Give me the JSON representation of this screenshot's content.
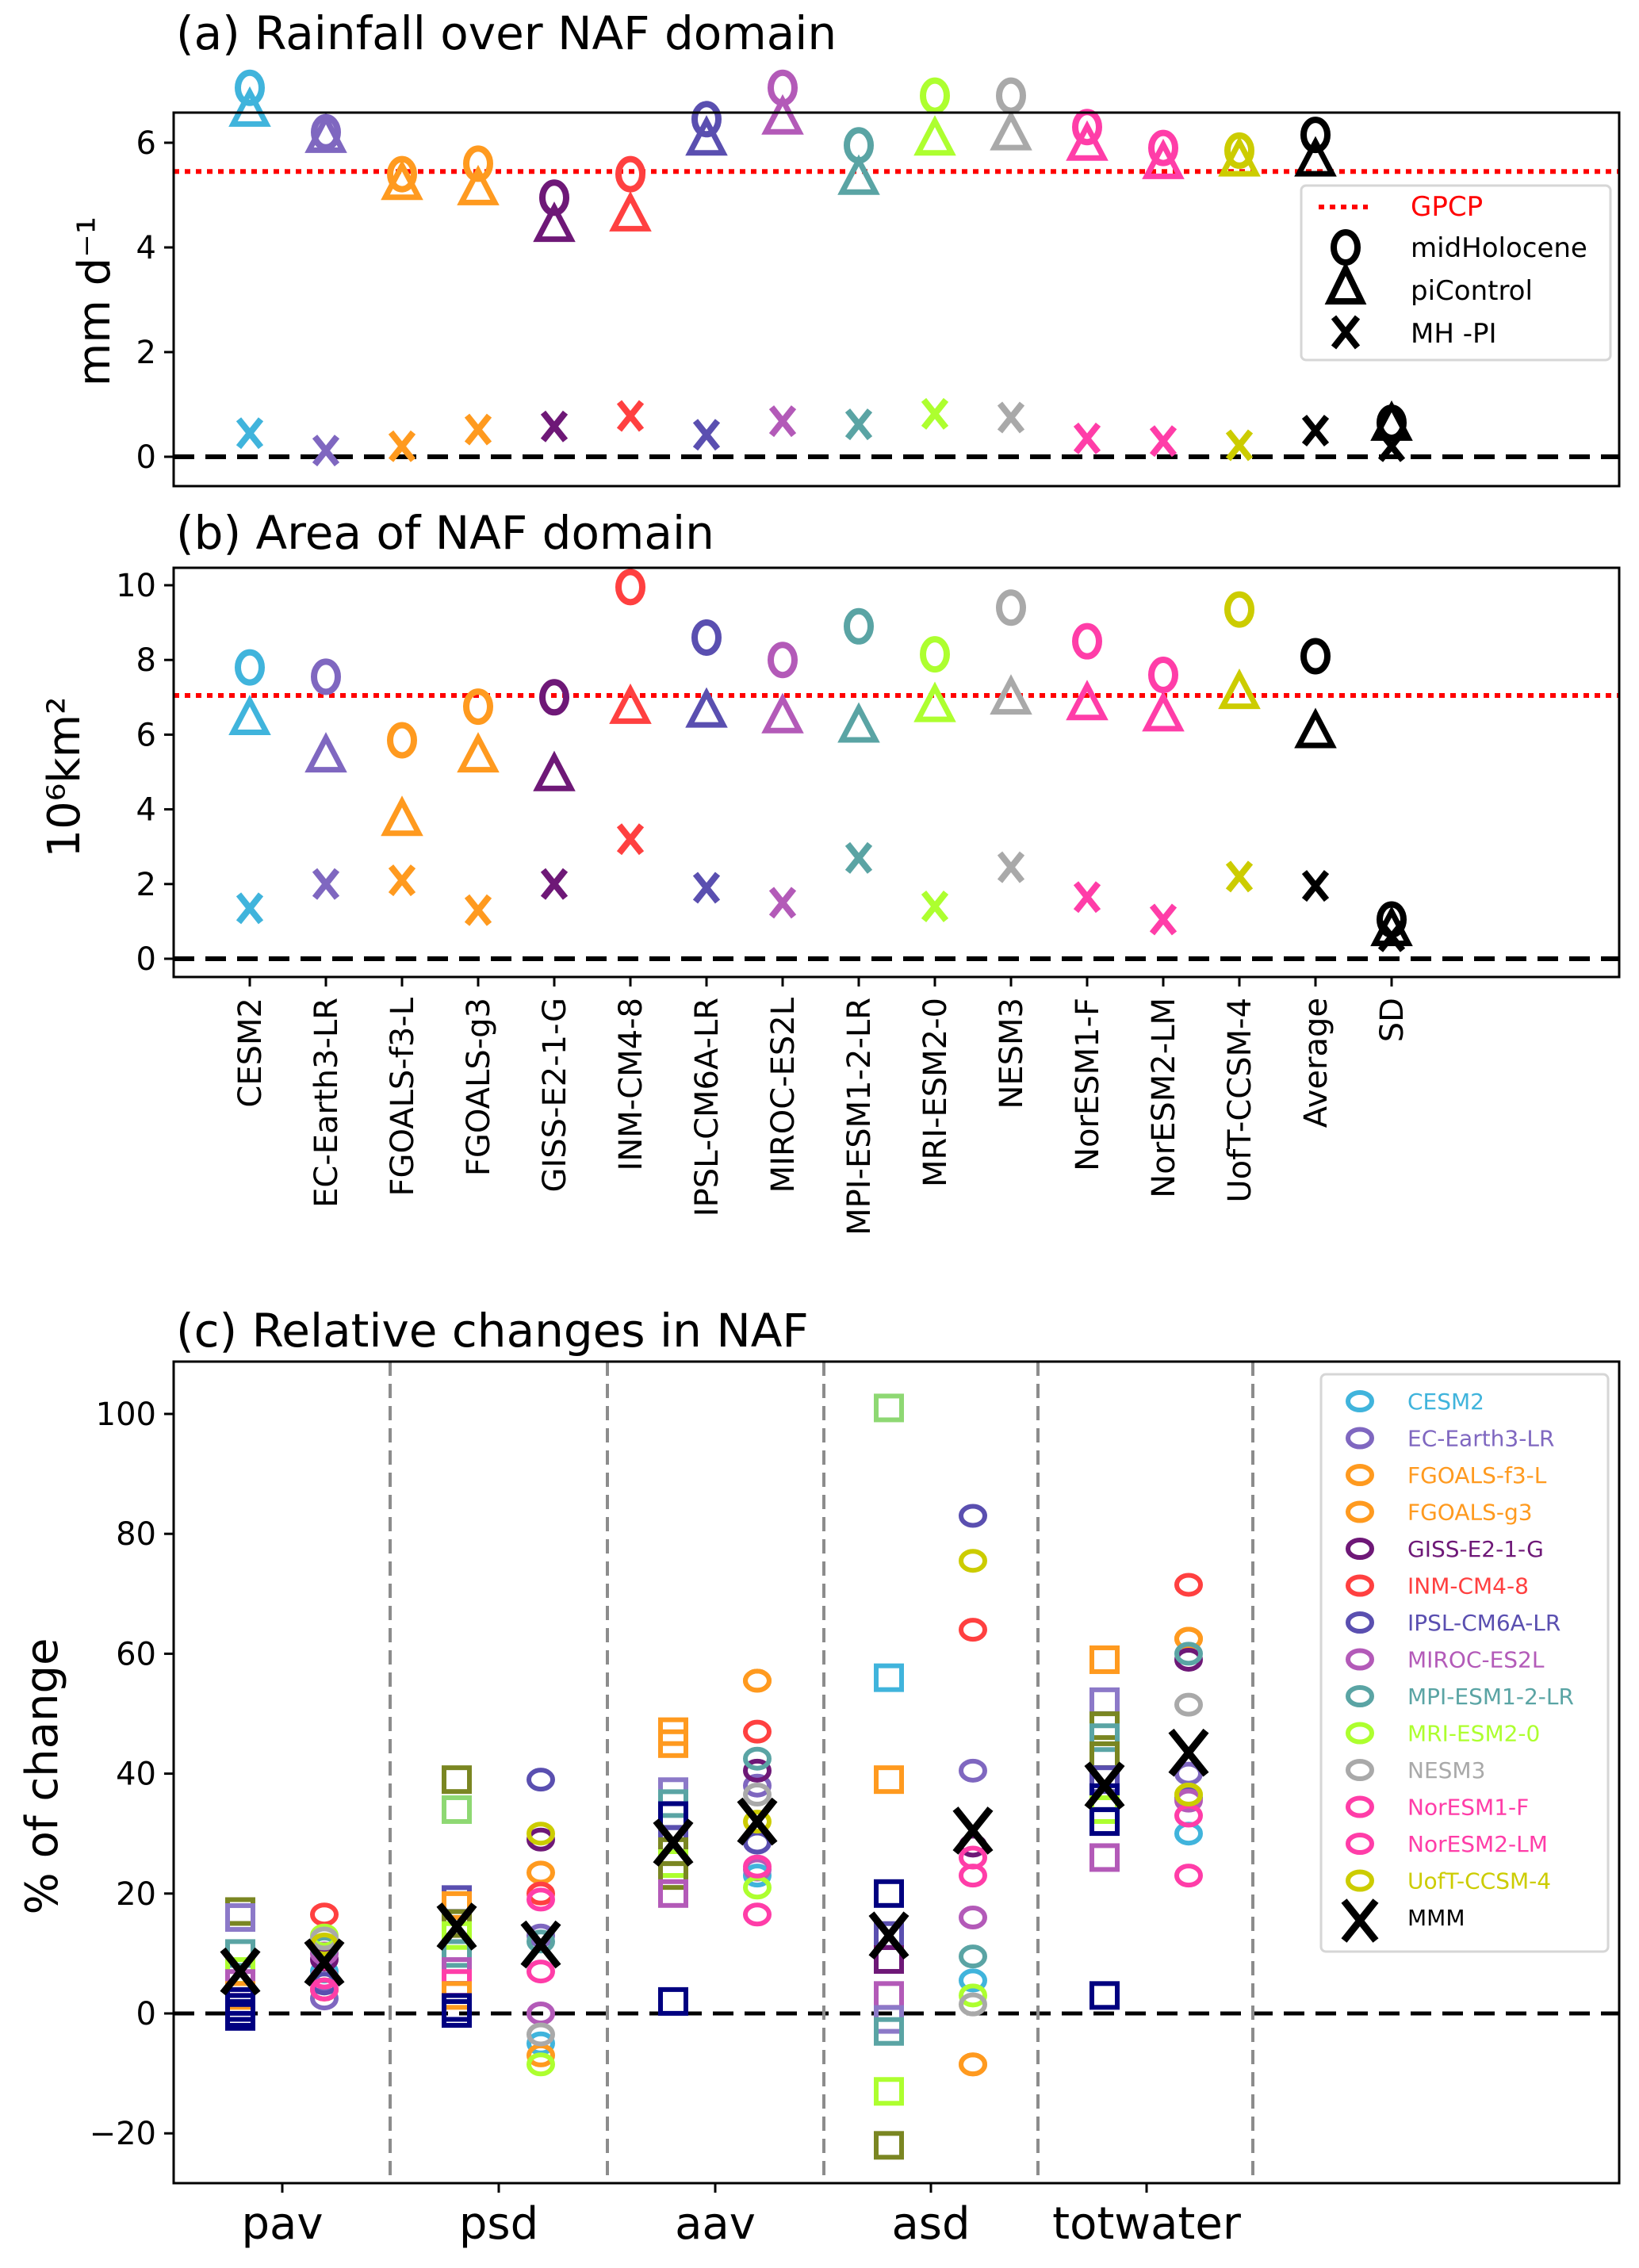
{
  "chart_data": [
    {
      "id": "a",
      "type": "scatter",
      "title": "(a) Rainfall over NAF domain",
      "ylabel": "mm d⁻¹",
      "ylim": [
        -0.3,
        7.5
      ],
      "yticks": [
        0,
        2,
        4,
        6
      ],
      "reference_line": {
        "name": "GPCP",
        "value": 5.45,
        "color": "#ff0000",
        "style": "dotted"
      },
      "zero_line": {
        "value": 0,
        "color": "#000000",
        "style": "dashed"
      },
      "categories": [
        "CESM2",
        "EC-Earth3-LR",
        "FGOALS-f3-L",
        "FGOALS-g3",
        "GISS-E2-1-G",
        "INM-CM4-8",
        "IPSL-CM6A-LR",
        "MIROC-ES2L",
        "MPI-ESM1-2-LR",
        "MRI-ESM2-0",
        "NESM3",
        "NorESM1-F",
        "NorESM2-LM",
        "UofT-CCSM-4",
        "Average",
        "SD"
      ],
      "series": [
        {
          "name": "midHolocene",
          "marker": "circle",
          "values": [
            7.05,
            6.2,
            5.4,
            5.6,
            4.95,
            5.4,
            6.45,
            7.05,
            5.95,
            6.9,
            6.9,
            6.3,
            5.9,
            5.85,
            6.15,
            0.65
          ]
        },
        {
          "name": "piControl",
          "marker": "triangle",
          "values": [
            6.6,
            6.1,
            5.2,
            5.1,
            4.4,
            4.6,
            6.05,
            6.45,
            5.3,
            6.05,
            6.15,
            5.95,
            5.6,
            5.65,
            5.65,
            0.6
          ]
        },
        {
          "name": "MH -PI",
          "marker": "x",
          "values": [
            0.45,
            0.12,
            0.2,
            0.52,
            0.58,
            0.78,
            0.42,
            0.68,
            0.62,
            0.82,
            0.75,
            0.35,
            0.3,
            0.22,
            0.5,
            0.2
          ]
        }
      ],
      "legend": {
        "position": "right",
        "entries": [
          "GPCP",
          "midHolocene",
          "piControl",
          "MH -PI"
        ]
      }
    },
    {
      "id": "b",
      "type": "scatter",
      "title": "(b) Area of NAF domain",
      "ylabel": "10⁶km²",
      "ylim": [
        -0.5,
        10.4
      ],
      "yticks": [
        0,
        2,
        4,
        6,
        8,
        10
      ],
      "reference_line": {
        "name": "GPCP",
        "value": 7.05,
        "color": "#ff0000",
        "style": "dotted"
      },
      "zero_line": {
        "value": 0,
        "color": "#000000",
        "style": "dashed"
      },
      "categories": [
        "CESM2",
        "EC-Earth3-LR",
        "FGOALS-f3-L",
        "FGOALS-g3",
        "GISS-E2-1-G",
        "INM-CM4-8",
        "IPSL-CM6A-LR",
        "MIROC-ES2L",
        "MPI-ESM1-2-LR",
        "MRI-ESM2-0",
        "NESM3",
        "NorESM1-F",
        "NorESM2-LM",
        "UofT-CCSM-4",
        "Average",
        "SD"
      ],
      "series": [
        {
          "name": "midHolocene",
          "marker": "circle",
          "values": [
            7.8,
            7.55,
            5.85,
            6.75,
            7.0,
            9.95,
            8.6,
            8.0,
            8.9,
            8.15,
            9.4,
            8.5,
            7.6,
            9.35,
            8.1,
            1.05
          ]
        },
        {
          "name": "piControl",
          "marker": "triangle",
          "values": [
            6.4,
            5.4,
            3.7,
            5.4,
            4.9,
            6.7,
            6.6,
            6.45,
            6.2,
            6.75,
            6.95,
            6.8,
            6.5,
            7.1,
            6.05,
            0.75
          ]
        },
        {
          "name": "MH -PI",
          "marker": "x",
          "values": [
            1.35,
            2.0,
            2.1,
            1.3,
            2.0,
            3.2,
            1.9,
            1.5,
            2.7,
            1.4,
            2.45,
            1.65,
            1.05,
            2.2,
            1.95,
            0.6
          ]
        }
      ]
    },
    {
      "id": "c",
      "type": "scatter",
      "title": "(c) Relative changes in NAF",
      "ylabel": "% of change",
      "ylim": [
        -28,
        108
      ],
      "yticks": [
        -20,
        0,
        20,
        40,
        60,
        80,
        100
      ],
      "ytick_labels": [
        "−20",
        "0",
        "20",
        "40",
        "60",
        "80",
        "100"
      ],
      "categories": [
        "pav",
        "psd",
        "aav",
        "asd",
        "totwater"
      ],
      "zero_line": {
        "value": 0,
        "color": "#000000",
        "style": "dashed"
      },
      "separators": "grey dashed vertical lines between categories",
      "square_points": [
        [
          17,
          16,
          10,
          7,
          5,
          3,
          2,
          1,
          0,
          -0.5
        ],
        [
          39,
          34,
          19,
          18,
          15,
          13,
          10,
          7,
          5,
          3,
          1,
          0
        ],
        [
          47,
          45,
          37,
          35,
          33,
          29,
          27,
          25,
          23,
          20,
          2
        ],
        [
          101,
          56,
          39,
          20,
          13,
          9,
          3,
          -1,
          -3,
          -13,
          -22
        ],
        [
          59,
          52,
          48,
          46,
          43,
          39,
          36,
          34,
          32,
          26,
          3
        ]
      ],
      "square_colors": [
        [
          "#7a8622",
          "#8c79c8",
          "#5aa4a4",
          "#adff2f",
          "#b35ab8",
          "#ff9a1f",
          "#000080",
          "#000080",
          "#000080",
          "#000080"
        ],
        [
          "#7a8622",
          "#8ed873",
          "#5a4fb0",
          "#ff9a1f",
          "#7a8622",
          "#adff2f",
          "#5aa4a4",
          "#b35ab8",
          "#ff3da8",
          "#ff9a1f",
          "#000080",
          "#000080"
        ],
        [
          "#ff9a1f",
          "#ff9a1f",
          "#8c79c8",
          "#5aa4a4",
          "#000080",
          "#5a4fb0",
          "#7a8622",
          "#adff2f",
          "#7a8622",
          "#b35ab8",
          "#000080"
        ],
        [
          "#8ed873",
          "#40b4dc",
          "#ff9a1f",
          "#000080",
          "#5a4fb0",
          "#6e1877",
          "#b35ab8",
          "#8c79c8",
          "#5aa4a4",
          "#adff2f",
          "#7a8622"
        ],
        [
          "#ff9a1f",
          "#8c79c8",
          "#7a8622",
          "#5aa4a4",
          "#7a8622",
          "#5a4fb0",
          "#000080",
          "#adff2f",
          "#000080",
          "#b35ab8",
          "#000080"
        ]
      ],
      "circle_points": [
        {
          "CESM2": 7,
          "EC-Earth3-LR": 2.5,
          "FGOALS-f3-L": 4,
          "FGOALS-g3": 4,
          "GISS-E2-1-G": 9,
          "INM-CM4-8": 16.5,
          "IPSL-CM6A-LR": 5,
          "MIROC-ES2L": 10,
          "MPI-ESM1-2-LR": 11,
          "MRI-ESM2-0": 13,
          "NESM3": 12.5,
          "NorESM1-F": 6,
          "NorESM2-LM": 4,
          "UofT-CCSM-4": 11.5
        },
        {
          "CESM2": -5,
          "EC-Earth3-LR": 13,
          "FGOALS-f3-L": 23.5,
          "FGOALS-g3": -7,
          "GISS-E2-1-G": 29,
          "INM-CM4-8": 20,
          "IPSL-CM6A-LR": 39,
          "MIROC-ES2L": 0,
          "MPI-ESM1-2-LR": 12,
          "MRI-ESM2-0": -8.5,
          "NESM3": -3.5,
          "NorESM1-F": 19,
          "NorESM2-LM": 7,
          "UofT-CCSM-4": 30
        },
        {
          "CESM2": 23,
          "EC-Earth3-LR": 38,
          "FGOALS-f3-L": 55.5,
          "FGOALS-g3": 55.5,
          "GISS-E2-1-G": 40.5,
          "INM-CM4-8": 47,
          "IPSL-CM6A-LR": 28.5,
          "MIROC-ES2L": 24,
          "MPI-ESM1-2-LR": 42.5,
          "MRI-ESM2-0": 21,
          "NESM3": 36.5,
          "NorESM1-F": 24.5,
          "NorESM2-LM": 16.5,
          "UofT-CCSM-4": 32
        },
        {
          "CESM2": 5.5,
          "EC-Earth3-LR": 40.5,
          "FGOALS-f3-L": -8.5,
          "FGOALS-g3": -8.5,
          "GISS-E2-1-G": 28,
          "INM-CM4-8": 64,
          "IPSL-CM6A-LR": 83,
          "MIROC-ES2L": 16,
          "MPI-ESM1-2-LR": 9.5,
          "MRI-ESM2-0": 3,
          "NESM3": 1.5,
          "NorESM1-F": 26,
          "NorESM2-LM": 23,
          "UofT-CCSM-4": 75.5
        },
        {
          "CESM2": 30,
          "EC-Earth3-LR": 40,
          "FGOALS-f3-L": 62.5,
          "FGOALS-g3": 62.5,
          "GISS-E2-1-G": 59,
          "INM-CM4-8": 71.5,
          "IPSL-CM6A-LR": 36,
          "MIROC-ES2L": 35.5,
          "MPI-ESM1-2-LR": 60,
          "MRI-ESM2-0": 36.5,
          "NESM3": 51.5,
          "NorESM1-F": 33,
          "NorESM2-LM": 23,
          "UofT-CCSM-4": 36.5
        }
      ],
      "mmm_squares": [
        7,
        14.5,
        28.5,
        13,
        38
      ],
      "mmm_circles": [
        8.5,
        11.5,
        32,
        30.5,
        43.5
      ],
      "legend": {
        "position": "top-right",
        "entries": [
          "CESM2",
          "EC-Earth3-LR",
          "FGOALS-f3-L",
          "FGOALS-g3",
          "GISS-E2-1-G",
          "INM-CM4-8",
          "IPSL-CM6A-LR",
          "MIROC-ES2L",
          "MPI-ESM1-2-LR",
          "MRI-ESM2-0",
          "NESM3",
          "NorESM1-F",
          "NorESM2-LM",
          "UofT-CCSM-4",
          "MMM"
        ]
      }
    }
  ],
  "model_colors": {
    "CESM2": "#40b4dc",
    "EC-Earth3-LR": "#7f67c0",
    "FGOALS-f3-L": "#ff9a1f",
    "FGOALS-g3": "#ff9a1f",
    "GISS-E2-1-G": "#6e1877",
    "INM-CM4-8": "#ff4040",
    "IPSL-CM6A-LR": "#5a4fb0",
    "MIROC-ES2L": "#b35ab8",
    "MPI-ESM1-2-LR": "#5aa4a4",
    "MRI-ESM2-0": "#adff2f",
    "NESM3": "#a9a9a9",
    "NorESM1-F": "#ff3da8",
    "NorESM2-LM": "#ff3da8",
    "UofT-CCSM-4": "#cccc00",
    "Average": "#000000",
    "SD": "#000000",
    "MMM": "#000000"
  },
  "labels": {
    "gpcp": "GPCP",
    "midholocene": "midHolocene",
    "picontrol": "piControl",
    "mhpi": "MH -PI",
    "mmm": "MMM"
  }
}
